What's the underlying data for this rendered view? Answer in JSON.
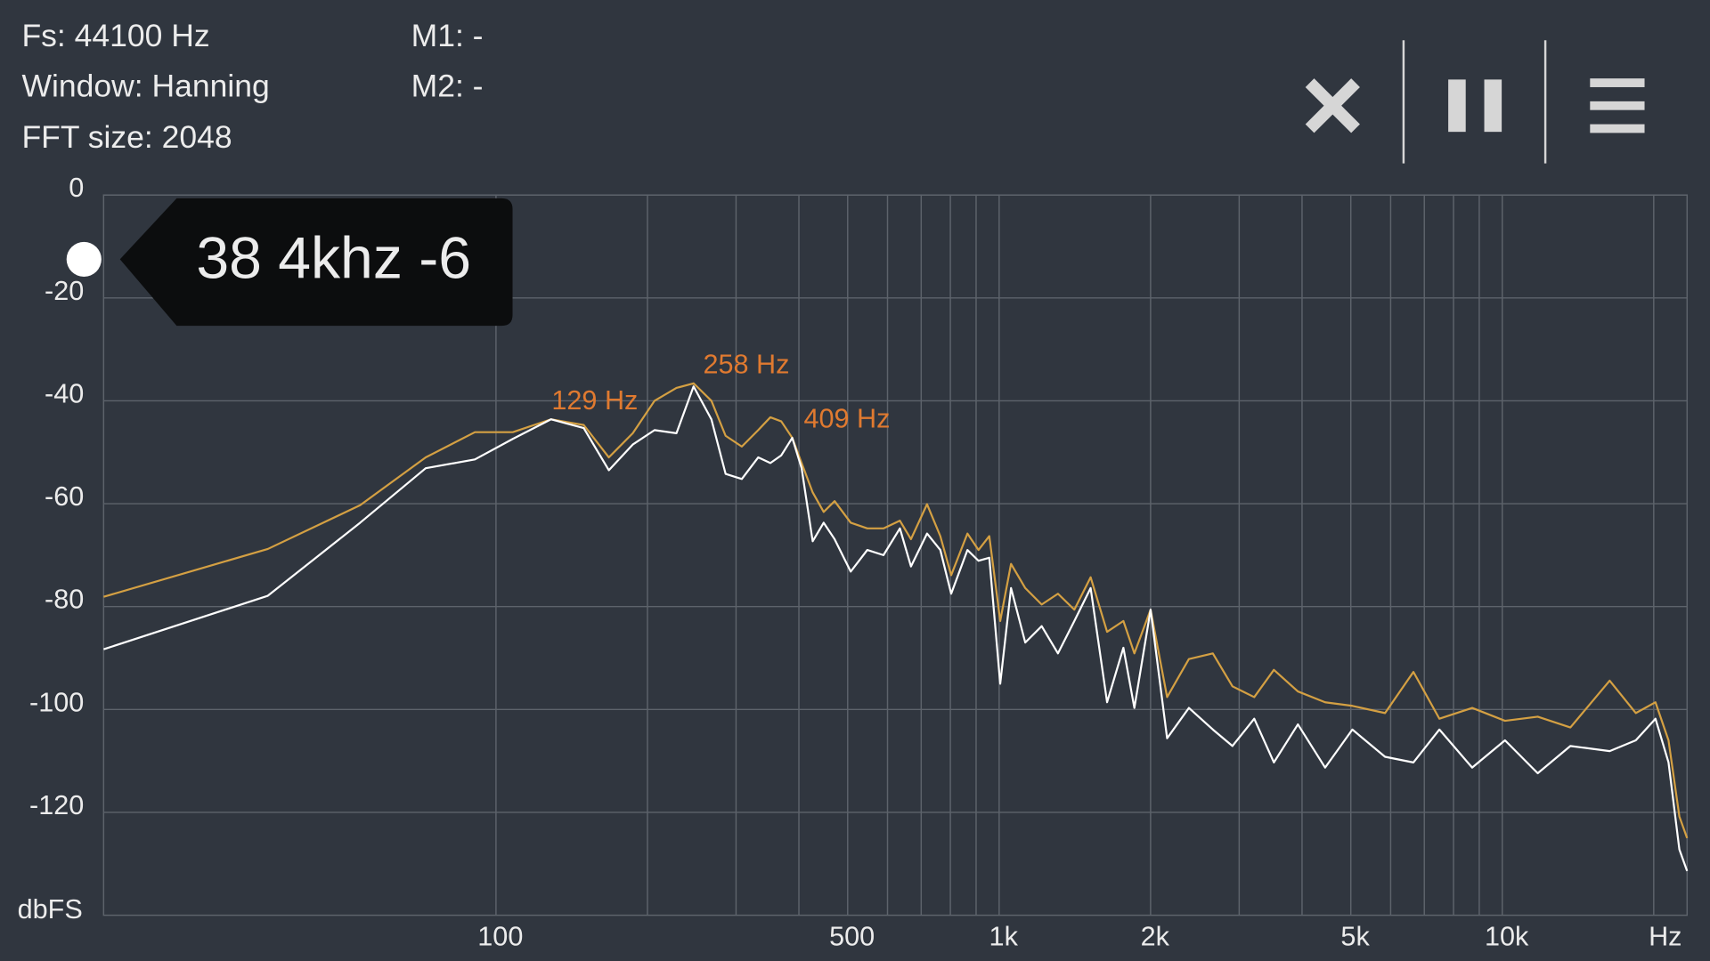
{
  "header": {
    "lines": [
      "Fs: 44100 Hz",
      "Window: Hanning",
      "FFT size: 2048"
    ],
    "markers": [
      "M1: -",
      "M2: -"
    ]
  },
  "tooltip": "38 4khz -6",
  "chart_data": {
    "type": "line",
    "x_scale": "log",
    "grid": true,
    "y_label": "dbFS",
    "x_label": "Hz",
    "xlim": [
      16.6,
      23300
    ],
    "ylim": [
      -140,
      0
    ],
    "yticks": [
      0,
      -20,
      -40,
      -60,
      -80,
      -100,
      -120
    ],
    "xticks": [
      100,
      500,
      {
        "value": 1000,
        "label": "1k"
      },
      {
        "value": 2000,
        "label": "2k"
      },
      {
        "value": 5000,
        "label": "5k"
      },
      {
        "value": 10000,
        "label": "10k"
      }
    ],
    "minor_xticks": [
      200,
      300,
      400,
      600,
      700,
      800,
      900,
      3000,
      4000,
      6000,
      7000,
      8000,
      9000,
      20000
    ],
    "x": [
      16.6,
      35.2,
      53.7,
      72.5,
      90.8,
      108,
      128.6,
      149.4,
      167.6,
      187,
      206.6,
      228.4,
      247,
      268,
      286,
      308,
      332,
      351,
      369,
      388,
      405,
      426,
      448,
      471,
      507,
      547,
      589,
      635,
      668,
      719,
      764,
      803,
      865,
      910,
      956,
      1005,
      1056,
      1127,
      1215,
      1309,
      1411,
      1520,
      1639,
      1766,
      1857,
      2000,
      2157,
      2383,
      2659,
      2909,
      3214,
      3516,
      3925,
      4446,
      5036,
      5848,
      6659,
      7500,
      8714,
      10125,
      11762,
      13657,
      16349,
      18424,
      20160,
      21400,
      22490,
      23300
    ],
    "series": [
      {
        "color": "#d4a043",
        "values": [
          -78.1,
          -68.8,
          -60.3,
          -51,
          -46.1,
          -46.1,
          -43.6,
          -44.7,
          -51,
          -46.3,
          -40,
          -37.5,
          -36.6,
          -40,
          -46.8,
          -48.9,
          -45.7,
          -43.2,
          -44,
          -47.2,
          -52.1,
          -57.8,
          -61.6,
          -59.5,
          -63.7,
          -64.8,
          -64.8,
          -63.3,
          -66.9,
          -60.1,
          -66.3,
          -73.9,
          -65.8,
          -69,
          -66.3,
          -82.8,
          -71.7,
          -76.4,
          -79.6,
          -77.5,
          -80.6,
          -74.3,
          -84.9,
          -82.8,
          -89.1,
          -80.6,
          -97.6,
          -90.2,
          -89.1,
          -95.5,
          -97.6,
          -92.3,
          -96.5,
          -98.6,
          -99.3,
          -100.7,
          -92.7,
          -101.8,
          -99.7,
          -102.2,
          -101.4,
          -103.5,
          -94.4,
          -100.7,
          -98.6,
          -106,
          -120.8,
          -125
        ]
      },
      {
        "color": "#ffffff",
        "values": [
          -88.3,
          -77.9,
          -63.7,
          -53.1,
          -51.4,
          -47.4,
          -43.6,
          -45.3,
          -53.5,
          -48.5,
          -45.7,
          -46.3,
          -37.2,
          -43.6,
          -54.2,
          -55.2,
          -51,
          -52.1,
          -50.6,
          -47.2,
          -53.1,
          -67.3,
          -63.7,
          -66.9,
          -73.2,
          -69,
          -70,
          -64.8,
          -72.2,
          -65.8,
          -69,
          -77.5,
          -69,
          -71.1,
          -70.5,
          -95,
          -76.4,
          -87,
          -83.8,
          -89.1,
          -82.8,
          -76.4,
          -98.6,
          -88,
          -99.7,
          -80.6,
          -105.6,
          -99.7,
          -103.9,
          -107.1,
          -101.8,
          -110.3,
          -102.9,
          -111.3,
          -103.9,
          -109.2,
          -110.3,
          -103.9,
          -111.3,
          -106,
          -112.4,
          -107.1,
          -108.1,
          -106,
          -101.8,
          -110.3,
          -127.2,
          -131.4
        ]
      }
    ],
    "annotations": [
      {
        "text": "129 Hz",
        "x": 129,
        "y": -43.6
      },
      {
        "text": "258 Hz",
        "x": 258,
        "y": -36.6
      },
      {
        "text": "409 Hz",
        "x": 409,
        "y": -47.2
      }
    ],
    "annotation_color": "#e07a30"
  }
}
